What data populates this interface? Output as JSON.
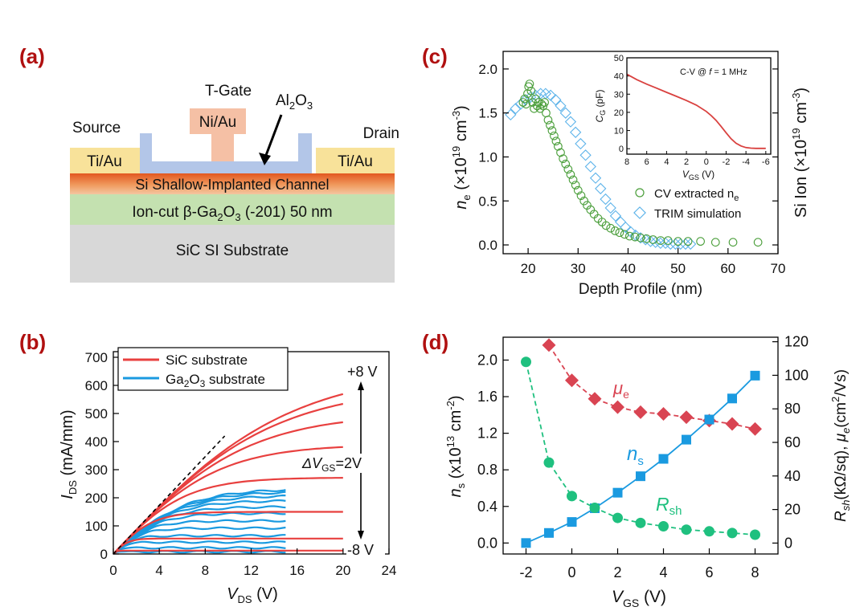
{
  "panels": {
    "a": {
      "label": "(a)",
      "tgate": "T-Gate",
      "al2o3": "Al",
      "al2o3_sub": "2",
      "al2o3_o": "O",
      "al2o3_sub2": "3",
      "niau": "Ni/Au",
      "source": "Source",
      "drain": "Drain",
      "tiau_left": "Ti/Au",
      "tiau_right": "Ti/Au",
      "channel": "Si Shallow-Implanted Channel",
      "ioncut_pre": "Ion-cut β-Ga",
      "ioncut_sub1": "2",
      "ioncut_mid": "O",
      "ioncut_sub2": "3",
      "ioncut_post": " (-201) 50 nm",
      "substrate": "SiC SI Substrate",
      "colors": {
        "metal_gold": "#f8e29a",
        "gate_pink": "#f5c0a5",
        "al2o3_blue": "#b3c6e8",
        "channel": "#e8763a",
        "gaoxide": "#c4e1b0",
        "sic": "#d8d8d8"
      }
    },
    "b": {
      "label": "(b)"
    },
    "c": {
      "label": "(c)"
    },
    "d": {
      "label": "(d)"
    }
  },
  "chart_data": [
    {
      "panel": "b",
      "type": "line",
      "xlabel_main": "V",
      "xlabel_sub": "DS",
      "xlabel_unit": " (V)",
      "ylabel_main": "I",
      "ylabel_sub": "DS",
      "ylabel_unit": " (mA/mm)",
      "xlim": [
        0,
        24
      ],
      "ylim": [
        0,
        720
      ],
      "xticks": [
        0,
        4,
        8,
        12,
        16,
        20,
        24
      ],
      "yticks": [
        0,
        100,
        200,
        300,
        400,
        500,
        600,
        700
      ],
      "legend": [
        {
          "name": "SiC substrate",
          "color": "#e8403f"
        },
        {
          "name_pre": "Ga",
          "name_sub": "2",
          "name_mid": "O",
          "name_sub2": "3",
          "name_post": " substrate",
          "color": "#1a9ae0"
        }
      ],
      "annotations": {
        "top": "+8 V",
        "bottom": "-8 V",
        "delta_pre": "ΔV",
        "delta_sub": "GS",
        "delta_post": "=2V"
      },
      "sic_saturation": [
        660,
        598,
        500,
        390,
        272,
        150,
        55,
        12
      ],
      "ga2o3_saturation": [
        232,
        222,
        208,
        190,
        168,
        145,
        118,
        92,
        65,
        42,
        22,
        8
      ],
      "sic_vmax": 20,
      "ga2o3_vmax": 15,
      "dashed_line": {
        "x": [
          0,
          9.7
        ],
        "y": [
          0,
          420
        ]
      }
    },
    {
      "panel": "c",
      "type": "scatter",
      "xlabel": "Depth Profile (nm)",
      "ylabel_left_main": "n",
      "ylabel_left_sub": "e",
      "ylabel_left_post": " (×10",
      "ylabel_left_exp": "19",
      "ylabel_left_unit": " cm",
      "ylabel_left_unitexp": "-3",
      "ylabel_left_close": ")",
      "ylabel_right_pre": "Si Ion (×10",
      "ylabel_right_exp": "19",
      "ylabel_right_unit": " cm",
      "ylabel_right_unitexp": "-3",
      "ylabel_right_close": ")",
      "xlim": [
        15,
        70
      ],
      "ylim": [
        -0.1,
        2.2
      ],
      "xticks": [
        20,
        30,
        40,
        50,
        60,
        70
      ],
      "yticks": [
        "0.0",
        "0.5",
        "1.0",
        "1.5",
        "2.0"
      ],
      "series": [
        {
          "name": "CV extracted n",
          "name_sub": "e",
          "color": "#4a9e3a",
          "x": [
            19.0,
            19.3,
            19.6,
            19.9,
            20.1,
            20.3,
            20.6,
            20.9,
            21.2,
            21.5,
            21.8,
            22.1,
            22.4,
            22.7,
            23.0,
            23.3,
            23.6,
            24.0,
            24.4,
            24.8,
            25.2,
            25.6,
            26.0,
            26.5,
            27.0,
            27.5,
            28.0,
            28.5,
            29.0,
            29.5,
            30.0,
            30.6,
            31.2,
            31.8,
            32.5,
            33.2,
            34.0,
            34.8,
            35.6,
            36.5,
            37.4,
            38.3,
            39.3,
            40.3,
            41.4,
            42.5,
            43.7,
            45.0,
            46.5,
            48.0,
            50.0,
            52.0,
            54.5,
            57.5,
            61.0,
            66.0
          ],
          "y": [
            1.62,
            1.66,
            1.6,
            1.72,
            1.8,
            1.83,
            1.75,
            1.62,
            1.55,
            1.66,
            1.58,
            1.62,
            1.55,
            1.6,
            1.58,
            1.62,
            1.5,
            1.42,
            1.36,
            1.3,
            1.24,
            1.18,
            1.12,
            1.05,
            0.98,
            0.92,
            0.86,
            0.8,
            0.74,
            0.68,
            0.62,
            0.56,
            0.5,
            0.45,
            0.4,
            0.35,
            0.3,
            0.26,
            0.22,
            0.19,
            0.16,
            0.14,
            0.12,
            0.1,
            0.09,
            0.08,
            0.07,
            0.06,
            0.05,
            0.05,
            0.04,
            0.04,
            0.04,
            0.03,
            0.03,
            0.03
          ]
        },
        {
          "name": "TRIM simulation",
          "color": "#5fb4ea",
          "x": [
            16.5,
            17.5,
            18.5,
            19.5,
            20.5,
            21.5,
            22.5,
            23.5,
            24.5,
            25.5,
            26.5,
            27.5,
            28.5,
            29.5,
            30.5,
            31.5,
            32.5,
            33.5,
            34.5,
            35.5,
            36.5,
            37.5,
            38.5,
            39.5,
            40.5,
            41.5,
            42.5,
            43.5,
            44.5,
            45.5,
            46.5,
            47.5,
            48.5,
            49.5,
            50.5,
            51.5,
            52.5
          ],
          "y": [
            1.48,
            1.55,
            1.6,
            1.65,
            1.68,
            1.7,
            1.72,
            1.72,
            1.7,
            1.65,
            1.58,
            1.5,
            1.4,
            1.28,
            1.15,
            1.02,
            0.89,
            0.76,
            0.64,
            0.52,
            0.42,
            0.33,
            0.26,
            0.2,
            0.15,
            0.11,
            0.08,
            0.06,
            0.04,
            0.03,
            0.02,
            0.02,
            0.01,
            0.01,
            0.01,
            0.01,
            0.01
          ]
        }
      ],
      "inset": {
        "title_pre": "C-V @ ",
        "title_f": "f",
        "title_post": " = 1 MHz",
        "xlabel_main": "V",
        "xlabel_sub": "GS",
        "xlabel_unit": " (V)",
        "ylabel_main": "C",
        "ylabel_sub": "G",
        "ylabel_unit": " (pF)",
        "xlim": [
          8,
          -6.5
        ],
        "ylim": [
          -3,
          50
        ],
        "xticks": [
          8,
          6,
          4,
          2,
          0,
          -2,
          -4,
          -6
        ],
        "yticks": [
          0,
          10,
          20,
          30,
          40,
          50
        ],
        "color": "#d9413f",
        "x": [
          8,
          7,
          6,
          5,
          4,
          3,
          2,
          1,
          0,
          -0.5,
          -1,
          -1.5,
          -2,
          -2.5,
          -3,
          -3.5,
          -4,
          -4.5,
          -5,
          -6
        ],
        "y": [
          41,
          38,
          35.5,
          33.3,
          31,
          28.8,
          26.5,
          24,
          20.5,
          18.2,
          15.5,
          12.2,
          8.8,
          5.5,
          3,
          1.5,
          0.6,
          0.3,
          0.2,
          0.2
        ]
      }
    },
    {
      "panel": "d",
      "type": "line",
      "xlabel_main": "V",
      "xlabel_sub": "GS",
      "xlabel_unit": " (V)",
      "ylabel_left_main": "n",
      "ylabel_left_sub": "s",
      "ylabel_left_post": " (x10",
      "ylabel_left_exp": "13",
      "ylabel_left_unit": " cm",
      "ylabel_left_unitexp": "-2",
      "ylabel_left_close": ")",
      "ylabel_right_R": "R",
      "ylabel_right_sh": "sh",
      "ylabel_right_mid": "(kΩ/sq), ",
      "ylabel_right_mu": "μ",
      "ylabel_right_e": "e",
      "ylabel_right_unit": "(cm",
      "ylabel_right_unitexp": "2",
      "ylabel_right_close": "/Vs)",
      "xlim": [
        -3,
        9
      ],
      "ylim_left": [
        -0.12,
        2.25
      ],
      "ylim_right": [
        -6.5,
        122.7
      ],
      "xticks": [
        -2,
        0,
        2,
        4,
        6,
        8
      ],
      "yticks_left": [
        "0.0",
        "0.4",
        "0.8",
        "1.2",
        "1.6",
        "2.0"
      ],
      "yticks_right": [
        0,
        20,
        40,
        60,
        80,
        100,
        120
      ],
      "series": [
        {
          "name": "μ",
          "name_sub": "e",
          "color": "#d94452",
          "axis": "right",
          "x": [
            -1,
            0,
            1,
            2,
            3,
            4,
            5,
            6,
            7,
            8
          ],
          "y": [
            118,
            97,
            86,
            81,
            78,
            77,
            75,
            73,
            71,
            68
          ]
        },
        {
          "name": "n",
          "name_sub": "s",
          "color": "#1a9ae0",
          "axis": "left",
          "x": [
            -2,
            -1,
            0,
            1,
            2,
            3,
            4,
            5,
            6,
            7,
            8
          ],
          "y": [
            0.0,
            0.11,
            0.23,
            0.38,
            0.55,
            0.73,
            0.92,
            1.13,
            1.35,
            1.58,
            1.83
          ]
        },
        {
          "name": "R",
          "name_sub": "sh",
          "color": "#1fc07f",
          "axis": "right",
          "x": [
            -2,
            -1,
            0,
            1,
            2,
            3,
            4,
            5,
            6,
            7,
            8
          ],
          "y": [
            108,
            48,
            28,
            21,
            15,
            12,
            10,
            8,
            7,
            6,
            5
          ]
        }
      ]
    }
  ]
}
